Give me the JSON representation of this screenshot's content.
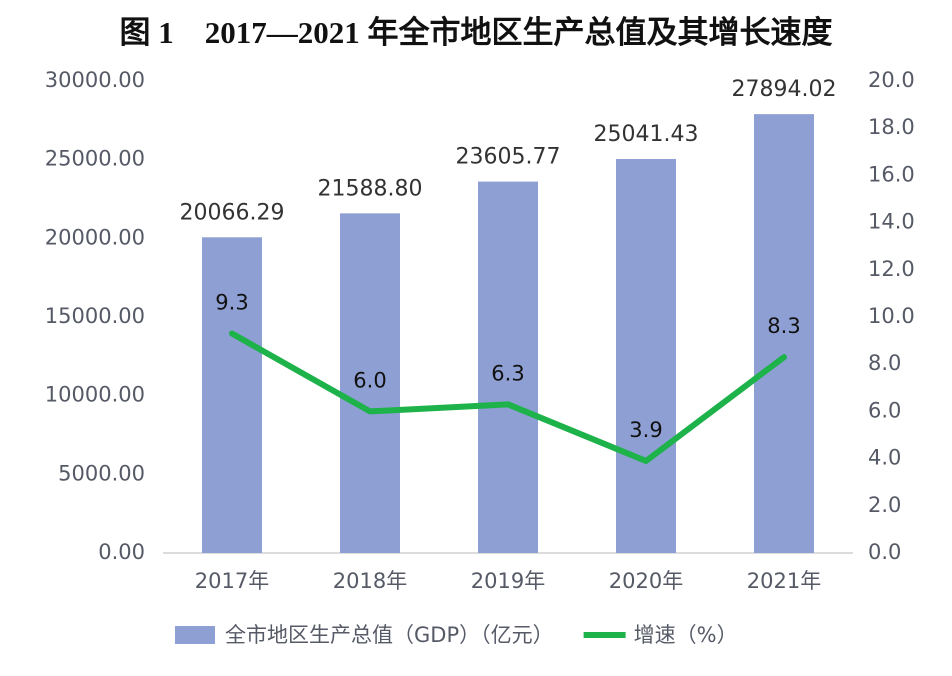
{
  "chart_data": {
    "type": "bar-line",
    "title": "图 1　2017—2021 年全市地区生产总值及其增长速度",
    "categories": [
      "2017年",
      "2018年",
      "2019年",
      "2020年",
      "2021年"
    ],
    "series": [
      {
        "name": "全市地区生产总值（GDP）（亿元）",
        "type": "bar",
        "color": "#8e9fd3",
        "values": [
          20066.29,
          21588.8,
          23605.77,
          25041.43,
          27894.02
        ],
        "value_labels": [
          "20066.29",
          "21588.80",
          "23605.77",
          "25041.43",
          "27894.02"
        ]
      },
      {
        "name": "增速（%）",
        "type": "line",
        "axis": "y2",
        "color": "#1db24a",
        "values": [
          9.3,
          6.0,
          6.3,
          3.9,
          8.3
        ],
        "value_labels": [
          "9.3",
          "6.0",
          "6.3",
          "3.9",
          "8.3"
        ]
      }
    ],
    "ylim": [
      0,
      30000
    ],
    "yticks": [
      {
        "value": 0,
        "label": "0.00"
      },
      {
        "value": 5000,
        "label": "5000.00"
      },
      {
        "value": 10000,
        "label": "10000.00"
      },
      {
        "value": 15000,
        "label": "15000.00"
      },
      {
        "value": 20000,
        "label": "20000.00"
      },
      {
        "value": 25000,
        "label": "25000.00"
      },
      {
        "value": 30000,
        "label": "30000.00"
      }
    ],
    "y2lim": [
      0,
      20
    ],
    "y2ticks": [
      {
        "value": 0,
        "label": "0.0"
      },
      {
        "value": 2,
        "label": "2.0"
      },
      {
        "value": 4,
        "label": "4.0"
      },
      {
        "value": 6,
        "label": "6.0"
      },
      {
        "value": 8,
        "label": "8.0"
      },
      {
        "value": 10,
        "label": "10.0"
      },
      {
        "value": 12,
        "label": "12.0"
      },
      {
        "value": 14,
        "label": "14.0"
      },
      {
        "value": 16,
        "label": "16.0"
      },
      {
        "value": 18,
        "label": "18.0"
      },
      {
        "value": 20,
        "label": "20.0"
      }
    ],
    "grid": false,
    "legend": "bottom"
  }
}
